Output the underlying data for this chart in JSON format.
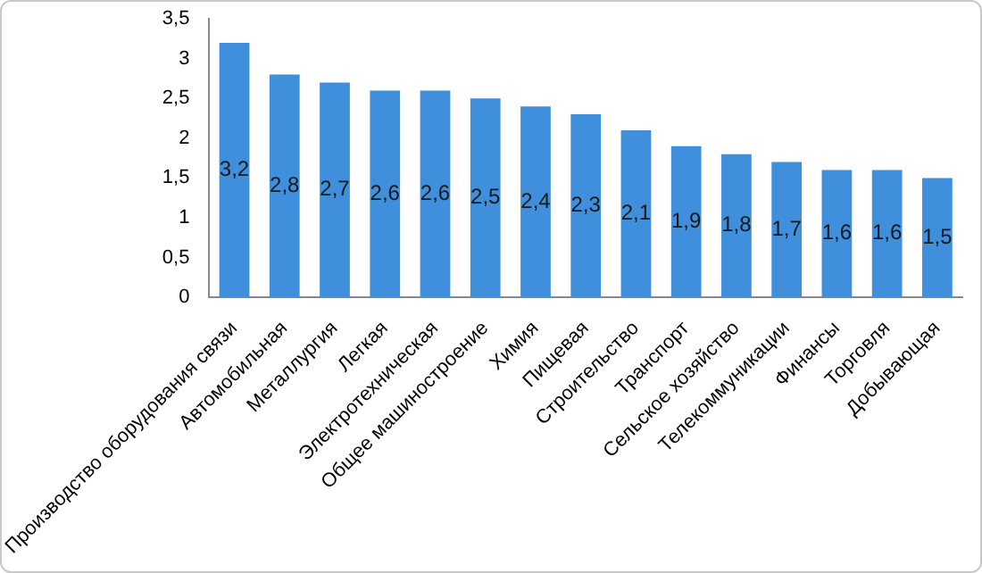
{
  "chart_data": {
    "type": "bar",
    "categories": [
      "Производство оборудования связи",
      "Автомобильная",
      "Металлургия",
      "Легкая",
      "Электротехническая",
      "Общее машиностроение",
      "Химия",
      "Пищевая",
      "Строительство",
      "Транспорт",
      "Сельское хозяйство",
      "Телекоммуникации",
      "Финансы",
      "Торговля",
      "Добывающая"
    ],
    "values": [
      3.2,
      2.8,
      2.7,
      2.6,
      2.6,
      2.5,
      2.4,
      2.3,
      2.1,
      1.9,
      1.8,
      1.7,
      1.6,
      1.6,
      1.5
    ],
    "value_labels": [
      "3,2",
      "2,8",
      "2,7",
      "2,6",
      "2,6",
      "2,5",
      "2,4",
      "2,3",
      "2,1",
      "1,9",
      "1,8",
      "1,7",
      "1,6",
      "1,6",
      "1,5"
    ],
    "color": "#3f8fdc",
    "ylim": [
      0,
      3.5
    ],
    "yticks": [
      0,
      {
        "value": 0.5,
        "label": "0,5"
      },
      1,
      {
        "value": 1.5,
        "label": "1,5"
      },
      2,
      {
        "value": 2.5,
        "label": "2,5"
      },
      3,
      {
        "value": 3.5,
        "label": "3,5"
      }
    ]
  }
}
